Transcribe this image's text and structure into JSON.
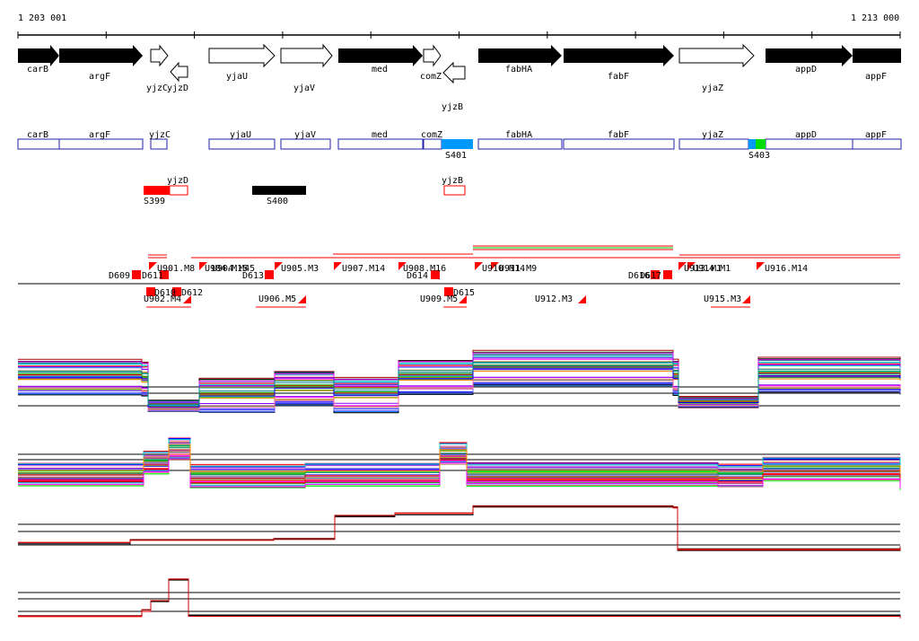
{
  "ruler": {
    "start_label": "1 203 001",
    "end_label": "1 213 000"
  },
  "genes": [
    {
      "name": "carB",
      "strand": "+",
      "filled": true
    },
    {
      "name": "argF",
      "strand": "+",
      "filled": true
    },
    {
      "name": "yjzC",
      "strand": "+",
      "filled": false
    },
    {
      "name": "yjzD",
      "strand": "-",
      "filled": false
    },
    {
      "name": "yjaU",
      "strand": "+",
      "filled": false
    },
    {
      "name": "yjaV",
      "strand": "+",
      "filled": false
    },
    {
      "name": "med",
      "strand": "+",
      "filled": true
    },
    {
      "name": "comZ",
      "strand": "+",
      "filled": false
    },
    {
      "name": "yjzB",
      "strand": "-",
      "filled": false
    },
    {
      "name": "fabHA",
      "strand": "+",
      "filled": true
    },
    {
      "name": "fabF",
      "strand": "+",
      "filled": true
    },
    {
      "name": "yjaZ",
      "strand": "+",
      "filled": false
    },
    {
      "name": "appD",
      "strand": "+",
      "filled": true
    },
    {
      "name": "appF",
      "strand": "+",
      "filled": true
    }
  ],
  "tiling_boxes": [
    "carB",
    "argF",
    "yjzC",
    "yjaU",
    "yjaV",
    "med",
    "comZ",
    "fabHA",
    "fabF",
    "yjaZ",
    "appD",
    "appF"
  ],
  "segments": [
    {
      "label": "S401",
      "color": "#0099ff"
    },
    {
      "label": "S403",
      "color": "#00dd00"
    }
  ],
  "lower_boxes": [
    {
      "label": "yjzD",
      "kind": "outline"
    },
    {
      "label": "yjzB",
      "kind": "outline"
    },
    {
      "label": "S399",
      "kind": "red"
    },
    {
      "label": "S400",
      "kind": "black"
    }
  ],
  "upper_markers": [
    "D609",
    "D611",
    "U901.M8",
    "U904.M15",
    "U904.M45",
    "D613",
    "U905.M3",
    "U907.M14",
    "U908.M16",
    "D614",
    "U910.M14",
    "U911.M9",
    "D616",
    "D617",
    "U913.M1",
    "U914.M1",
    "U916.M14"
  ],
  "lower_markers": [
    "D610",
    "D612",
    "U902.M4",
    "U906.M5",
    "D615",
    "U909.M5",
    "U912.M3",
    "U915.M3"
  ]
}
